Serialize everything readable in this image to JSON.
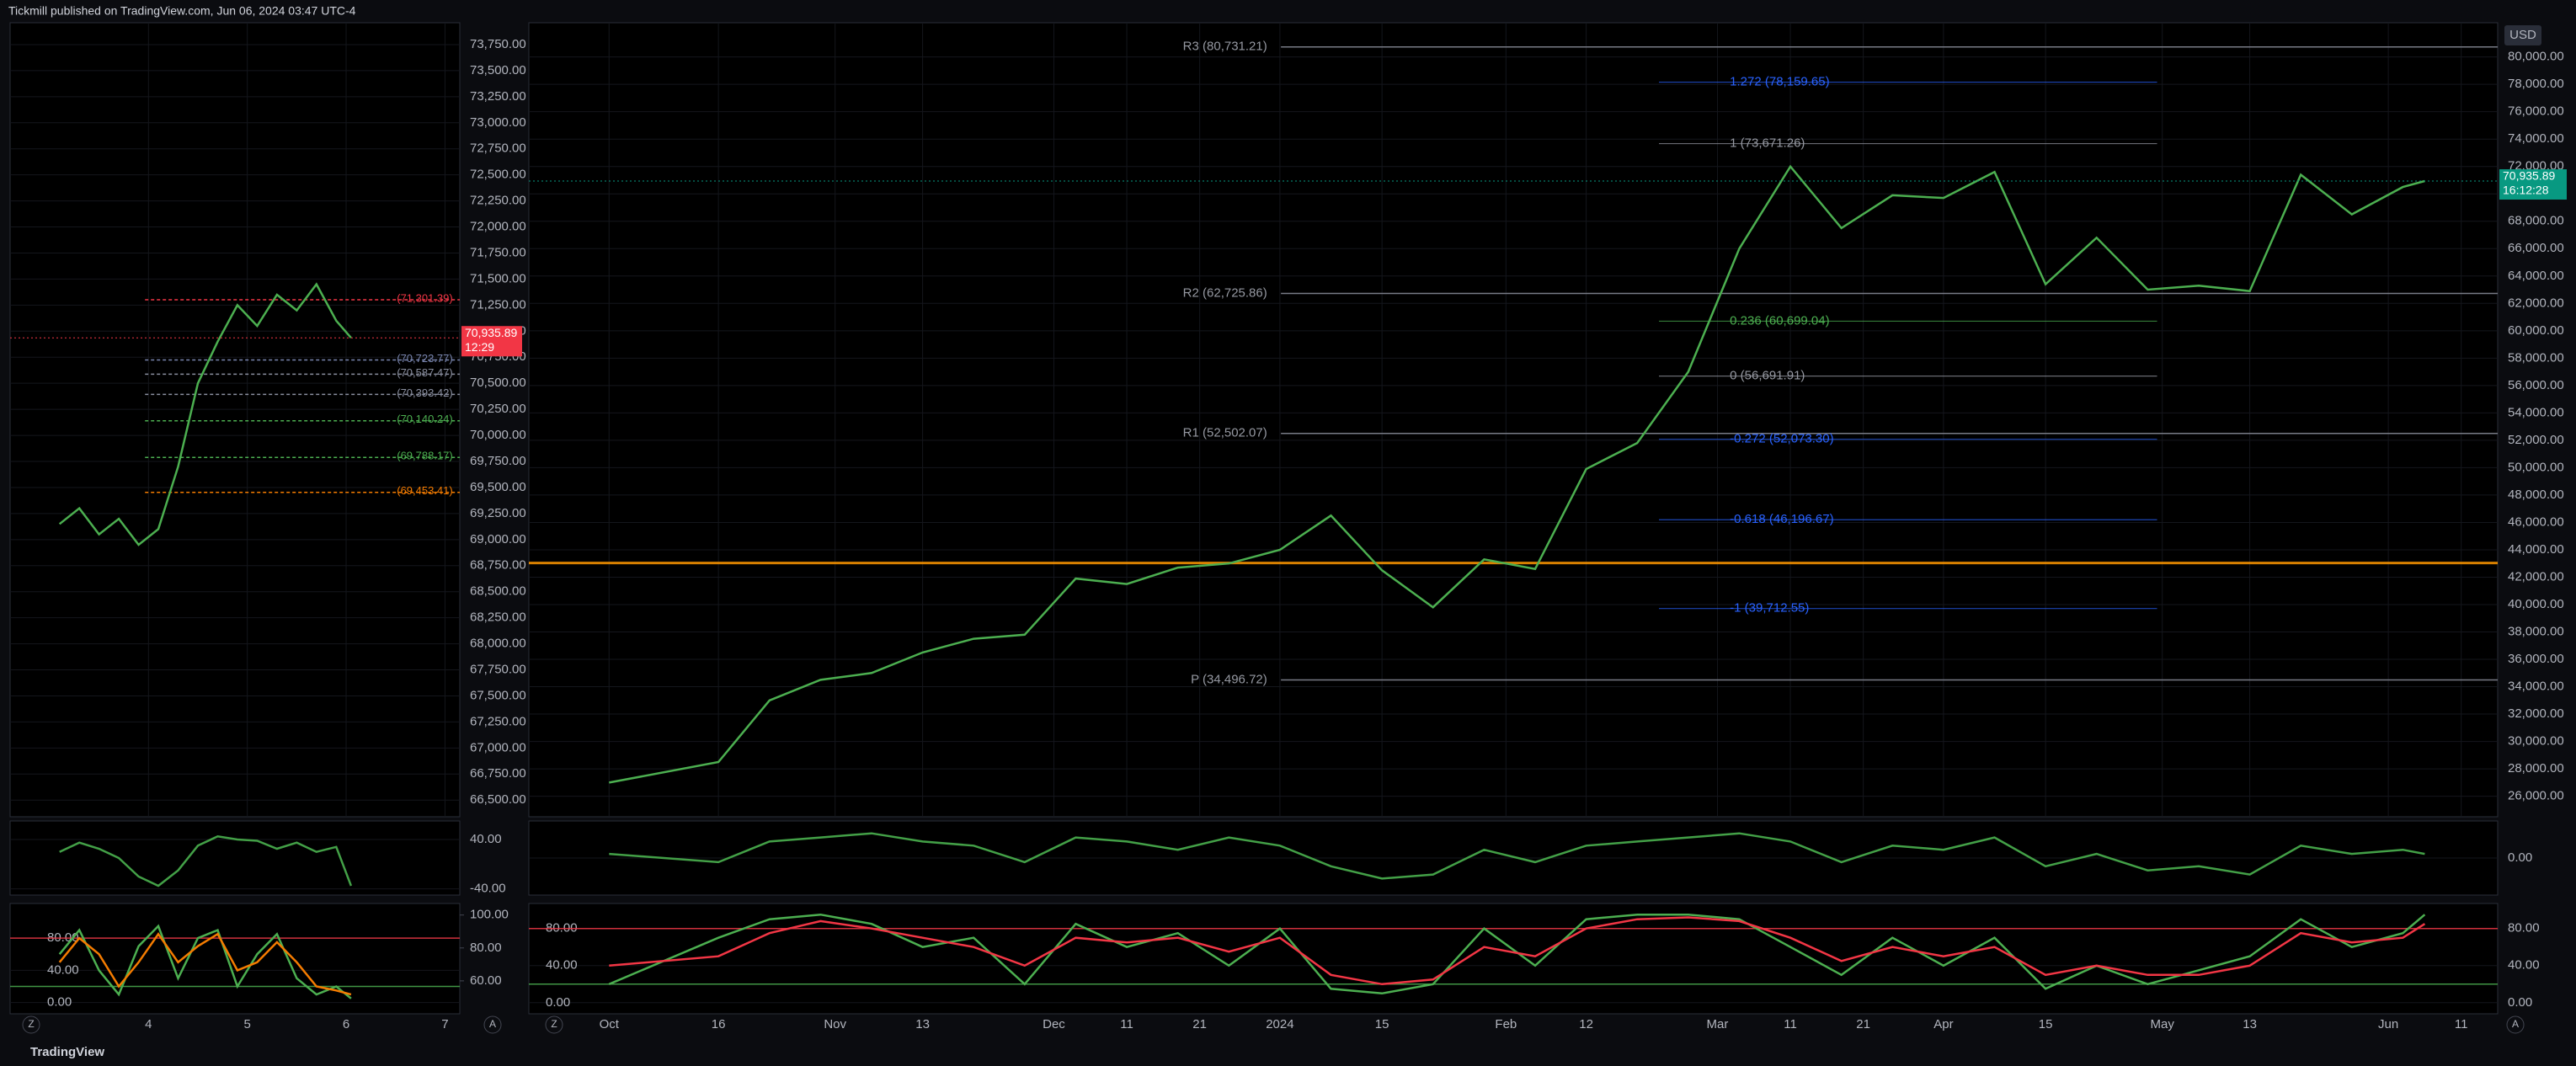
{
  "header": {
    "text": "Tickmill published on TradingView.com, Jun 06, 2024 03:47 UTC-4"
  },
  "footer": {
    "brand": "TradingView"
  },
  "currency": "USD",
  "scale_buttons": [
    "Z",
    "A"
  ],
  "chart_data": [
    {
      "type": "line",
      "x": [
        3.1,
        3.3,
        3.5,
        3.7,
        3.9,
        4.1,
        4.3,
        4.5,
        4.7,
        4.9,
        5.1,
        5.3,
        5.5,
        5.7,
        5.9,
        6.05
      ],
      "series": [
        {
          "color": "#4caf50",
          "values": [
            69150,
            69300,
            69050,
            69200,
            68950,
            69100,
            69700,
            70500,
            70900,
            71250,
            71050,
            71350,
            71200,
            71450,
            71100,
            70935.89
          ]
        }
      ],
      "xlim": [
        2.6,
        7.15
      ],
      "xticks": [
        4,
        5,
        6,
        7
      ],
      "ylim": [
        66340,
        73960
      ],
      "yticks": [
        {
          "value": 66500,
          "label": "66,500.00"
        },
        {
          "value": 66750,
          "label": "66,750.00"
        },
        {
          "value": 67000,
          "label": "67,000.00"
        },
        {
          "value": 67250,
          "label": "67,250.00"
        },
        {
          "value": 67500,
          "label": "67,500.00"
        },
        {
          "value": 67750,
          "label": "67,750.00"
        },
        {
          "value": 68000,
          "label": "68,000.00"
        },
        {
          "value": 68250,
          "label": "68,250.00"
        },
        {
          "value": 68500,
          "label": "68,500.00"
        },
        {
          "value": 68750,
          "label": "68,750.00"
        },
        {
          "value": 69000,
          "label": "69,000.00"
        },
        {
          "value": 69250,
          "label": "69,250.00"
        },
        {
          "value": 69500,
          "label": "69,500.00"
        },
        {
          "value": 69750,
          "label": "69,750.00"
        },
        {
          "value": 70000,
          "label": "70,000.00"
        },
        {
          "value": 70250,
          "label": "70,250.00"
        },
        {
          "value": 70500,
          "label": "70,500.00"
        },
        {
          "value": 70750,
          "label": "70,750.00"
        },
        {
          "value": 71000,
          "label": "71,000.00"
        },
        {
          "value": 71250,
          "label": "71,250.00"
        },
        {
          "value": 71500,
          "label": "71,500.00"
        },
        {
          "value": 71750,
          "label": "71,750.00"
        },
        {
          "value": 72000,
          "label": "72,000.00"
        },
        {
          "value": 72250,
          "label": "72,250.00"
        },
        {
          "value": 72500,
          "label": "72,500.00"
        },
        {
          "value": 72750,
          "label": "72,750.00"
        },
        {
          "value": 73000,
          "label": "73,000.00"
        },
        {
          "value": 73250,
          "label": "73,250.00"
        },
        {
          "value": 73500,
          "label": "73,500.00"
        },
        {
          "value": 73750,
          "label": "73,750.00"
        }
      ],
      "levels": [
        {
          "value": 71301.39,
          "label": "(71,301.39)",
          "color": "#f23645"
        },
        {
          "value": 70723.77,
          "label": "(70,723.77)",
          "color": "#7a86b0"
        },
        {
          "value": 70587.47,
          "label": "(70,587.47)",
          "color": "#8a8fa0"
        },
        {
          "value": 70393.42,
          "label": "(70,393.42)",
          "color": "#8a8fa0"
        },
        {
          "value": 70140.24,
          "label": "(70,140.24)",
          "color": "#4caf50"
        },
        {
          "value": 69788.17,
          "label": "(69,788.17)",
          "color": "#4caf50"
        },
        {
          "value": 69453.41,
          "label": "(69,453.41)",
          "color": "#f57c00"
        }
      ],
      "last_price": {
        "value": 70935.89,
        "label": "70,935.89",
        "countdown": "12:29",
        "color": "#f23645"
      }
    },
    {
      "type": "line",
      "x": [
        3.1,
        3.3,
        3.5,
        3.7,
        3.9,
        4.1,
        4.3,
        4.5,
        4.7,
        4.9,
        5.1,
        5.3,
        5.5,
        5.7,
        5.9,
        6.05
      ],
      "series": [
        {
          "color": "#43a047",
          "values": [
            20,
            35,
            25,
            10,
            -20,
            -35,
            -10,
            30,
            45,
            40,
            38,
            25,
            35,
            20,
            28,
            -35
          ]
        }
      ],
      "xlim": [
        2.6,
        7.15
      ],
      "ylim": [
        -50,
        70
      ],
      "yticks": [
        {
          "value": 40,
          "label": "40.00"
        },
        {
          "value": -40,
          "label": "-40.00"
        }
      ]
    },
    {
      "type": "line",
      "x": [
        3.1,
        3.3,
        3.5,
        3.7,
        3.9,
        4.1,
        4.3,
        4.5,
        4.7,
        4.9,
        5.1,
        5.3,
        5.5,
        5.7,
        5.9,
        6.05
      ],
      "series": [
        {
          "color": "#4caf50",
          "values": [
            60,
            90,
            40,
            10,
            70,
            95,
            30,
            80,
            90,
            20,
            60,
            85,
            30,
            10,
            20,
            5
          ]
        },
        {
          "color": "#f57c00",
          "values": [
            50,
            80,
            60,
            20,
            50,
            85,
            50,
            70,
            85,
            40,
            50,
            75,
            50,
            20,
            15,
            10
          ]
        }
      ],
      "xlim": [
        2.6,
        7.15
      ],
      "ylim": [
        -14,
        123
      ],
      "yticks": [
        {
          "value": 0,
          "label": "0.00"
        },
        {
          "value": 40,
          "label": "40.00"
        },
        {
          "value": 80,
          "label": "80.00"
        }
      ],
      "y2lim": [
        40,
        107
      ],
      "y2ticks": [
        {
          "value": 60,
          "label": "60.00"
        },
        {
          "value": 80,
          "label": "80.00"
        },
        {
          "value": 100,
          "label": "100.00"
        }
      ],
      "hlines": [
        {
          "value": 80,
          "color": "#f23645"
        },
        {
          "value": 20,
          "color": "#4caf50"
        }
      ]
    },
    {
      "type": "line",
      "x": [
        0,
        15,
        22,
        29,
        36,
        43,
        50,
        57,
        64,
        71,
        78,
        85,
        92,
        99,
        106,
        113,
        120,
        127,
        134,
        141,
        148,
        155,
        162,
        169,
        176,
        183,
        190,
        197,
        204,
        211,
        218,
        225,
        232,
        239,
        246,
        249
      ],
      "series": [
        {
          "color": "#4caf50",
          "values": [
            27000,
            28500,
            33000,
            34500,
            35000,
            36500,
            37500,
            37800,
            41900,
            41500,
            42700,
            43000,
            44000,
            46500,
            42500,
            39800,
            43300,
            42600,
            49900,
            51800,
            57000,
            66000,
            72000,
            67500,
            69900,
            69700,
            71600,
            63400,
            66800,
            63000,
            63300,
            62900,
            71400,
            68500,
            70500,
            70935.89
          ]
        }
      ],
      "xlim": [
        -11,
        259
      ],
      "xticks": [
        {
          "value": 0,
          "label": "Oct"
        },
        {
          "value": 15,
          "label": "16"
        },
        {
          "value": 31,
          "label": "Nov"
        },
        {
          "value": 43,
          "label": "13"
        },
        {
          "value": 61,
          "label": "Dec"
        },
        {
          "value": 71,
          "label": "11"
        },
        {
          "value": 81,
          "label": "21"
        },
        {
          "value": 92,
          "label": "2024"
        },
        {
          "value": 106,
          "label": "15"
        },
        {
          "value": 123,
          "label": "Feb"
        },
        {
          "value": 134,
          "label": "12"
        },
        {
          "value": 152,
          "label": "Mar"
        },
        {
          "value": 162,
          "label": "11"
        },
        {
          "value": 172,
          "label": "21"
        },
        {
          "value": 183,
          "label": "Apr"
        },
        {
          "value": 197,
          "label": "15"
        },
        {
          "value": 213,
          "label": "May"
        },
        {
          "value": 225,
          "label": "13"
        },
        {
          "value": 244,
          "label": "Jun"
        },
        {
          "value": 254,
          "label": "11"
        }
      ],
      "ylim": [
        24500,
        82500
      ],
      "yticks": [
        {
          "value": 26000,
          "label": "26,000.00"
        },
        {
          "value": 28000,
          "label": "28,000.00"
        },
        {
          "value": 30000,
          "label": "30,000.00"
        },
        {
          "value": 32000,
          "label": "32,000.00"
        },
        {
          "value": 34000,
          "label": "34,000.00"
        },
        {
          "value": 36000,
          "label": "36,000.00"
        },
        {
          "value": 38000,
          "label": "38,000.00"
        },
        {
          "value": 40000,
          "label": "40,000.00"
        },
        {
          "value": 42000,
          "label": "42,000.00"
        },
        {
          "value": 44000,
          "label": "44,000.00"
        },
        {
          "value": 46000,
          "label": "46,000.00"
        },
        {
          "value": 48000,
          "label": "48,000.00"
        },
        {
          "value": 50000,
          "label": "50,000.00"
        },
        {
          "value": 52000,
          "label": "52,000.00"
        },
        {
          "value": 54000,
          "label": "54,000.00"
        },
        {
          "value": 56000,
          "label": "56,000.00"
        },
        {
          "value": 58000,
          "label": "58,000.00"
        },
        {
          "value": 60000,
          "label": "60,000.00"
        },
        {
          "value": 62000,
          "label": "62,000.00"
        },
        {
          "value": 64000,
          "label": "64,000.00"
        },
        {
          "value": 66000,
          "label": "66,000.00"
        },
        {
          "value": 68000,
          "label": "68,000.00"
        },
        {
          "value": 70000,
          "label": "70,000.00"
        },
        {
          "value": 72000,
          "label": "72,000.00"
        },
        {
          "value": 74000,
          "label": "74,000.00"
        },
        {
          "value": 76000,
          "label": "76,000.00"
        },
        {
          "value": 78000,
          "label": "78,000.00"
        },
        {
          "value": 80000,
          "label": "80,000.00"
        }
      ],
      "pivots": [
        {
          "value": 80731.21,
          "label": "R3 (80,731.21)"
        },
        {
          "value": 62725.86,
          "label": "R2 (62,725.86)"
        },
        {
          "value": 52502.07,
          "label": "R1 (52,502.07)"
        },
        {
          "value": 34496.72,
          "label": "P (34,496.72)"
        }
      ],
      "fib_levels": [
        {
          "value": 78159.65,
          "label": "1.272 (78,159.65)",
          "color": "#2962ff"
        },
        {
          "value": 73671.26,
          "label": "1 (73,671.26)",
          "color": "#9598a1"
        },
        {
          "value": 60699.04,
          "label": "0.236 (60,699.04)",
          "color": "#4caf50"
        },
        {
          "value": 56691.91,
          "label": "0 (56,691.91)",
          "color": "#9598a1"
        },
        {
          "value": 52073.3,
          "label": "-0.272 (52,073.30)",
          "color": "#2962ff"
        },
        {
          "value": 46196.67,
          "label": "-0.618 (46,196.67)",
          "color": "#2962ff"
        },
        {
          "value": 39712.55,
          "label": "-1 (39,712.55)",
          "color": "#2962ff"
        }
      ],
      "hlines": [
        {
          "value": 43040,
          "color": "#ff9800"
        }
      ],
      "last_price": {
        "value": 70935.89,
        "label": "70,935.89",
        "countdown": "16:12:28",
        "color": "#089981"
      }
    },
    {
      "type": "line",
      "x": [
        0,
        15,
        22,
        29,
        36,
        43,
        50,
        57,
        64,
        71,
        78,
        85,
        92,
        99,
        106,
        113,
        120,
        127,
        134,
        141,
        148,
        155,
        162,
        169,
        176,
        183,
        190,
        197,
        204,
        211,
        218,
        225,
        232,
        239,
        246,
        249
      ],
      "series": [
        {
          "color": "#43a047",
          "values": [
            5,
            -5,
            20,
            25,
            30,
            20,
            15,
            -5,
            25,
            20,
            10,
            25,
            15,
            -10,
            -25,
            -20,
            10,
            -5,
            15,
            20,
            25,
            30,
            20,
            -5,
            15,
            10,
            25,
            -10,
            5,
            -15,
            -10,
            -20,
            15,
            5,
            10,
            5
          ]
        }
      ],
      "xlim": [
        -11,
        259
      ],
      "ylim": [
        -45,
        45
      ],
      "yticks": [
        {
          "value": 0,
          "label": "0.00"
        }
      ]
    },
    {
      "type": "line",
      "x": [
        0,
        15,
        22,
        29,
        36,
        43,
        50,
        57,
        64,
        71,
        78,
        85,
        92,
        99,
        106,
        113,
        120,
        127,
        134,
        141,
        148,
        155,
        162,
        169,
        176,
        183,
        190,
        197,
        204,
        211,
        218,
        225,
        232,
        239,
        246,
        249
      ],
      "series": [
        {
          "color": "#4caf50",
          "values": [
            20,
            70,
            90,
            95,
            85,
            60,
            70,
            20,
            85,
            60,
            75,
            40,
            80,
            15,
            10,
            20,
            80,
            40,
            90,
            95,
            95,
            90,
            60,
            30,
            70,
            40,
            70,
            15,
            40,
            20,
            35,
            50,
            90,
            60,
            75,
            95
          ]
        },
        {
          "color": "#f23645",
          "values": [
            40,
            50,
            75,
            88,
            80,
            70,
            60,
            40,
            70,
            65,
            70,
            55,
            70,
            30,
            20,
            25,
            60,
            50,
            80,
            90,
            92,
            88,
            70,
            45,
            60,
            50,
            60,
            30,
            40,
            30,
            30,
            40,
            75,
            65,
            70,
            85
          ]
        }
      ],
      "xlim": [
        -11,
        259
      ],
      "ylim": [
        -12,
        107
      ],
      "yticks": [
        {
          "value": 0,
          "label": "0.00"
        },
        {
          "value": 40,
          "label": "40.00"
        },
        {
          "value": 80,
          "label": "80.00"
        }
      ],
      "ticks_both_sides": true,
      "hlines": [
        {
          "value": 80,
          "color": "#f23645"
        },
        {
          "value": 20,
          "color": "#4caf50"
        }
      ]
    }
  ]
}
